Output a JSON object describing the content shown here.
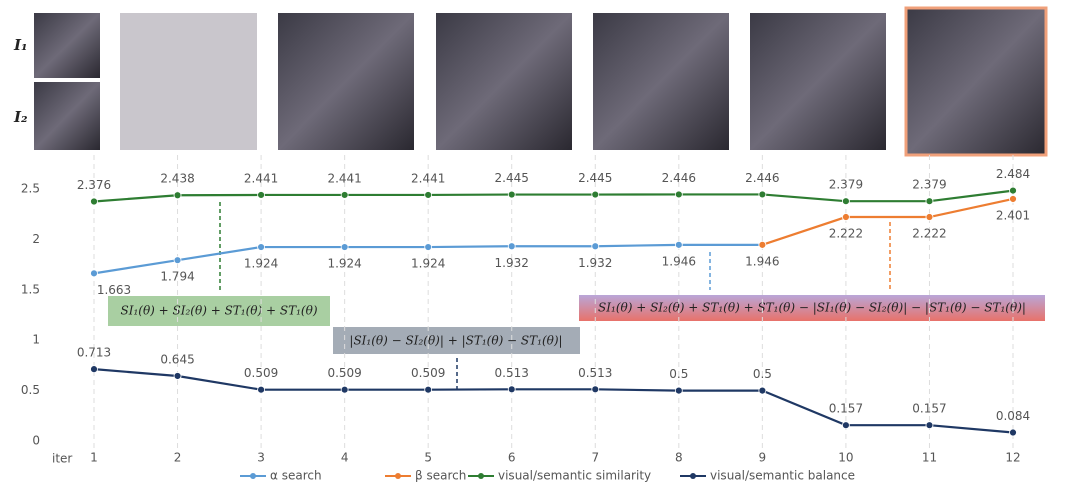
{
  "image_labels": [
    "I₁",
    "I₂"
  ],
  "chart_data": {
    "type": "line",
    "x_label": "iter",
    "x": [
      1,
      2,
      3,
      4,
      5,
      6,
      7,
      8,
      9,
      10,
      11,
      12
    ],
    "xlim": [
      1,
      12
    ],
    "ylim": [
      0,
      2.5
    ],
    "yticks": [
      0,
      0.5,
      1,
      1.5,
      2,
      2.5
    ],
    "legend": "bottom",
    "series": [
      {
        "name": "α search",
        "color": "#5b9bd5",
        "label_side": "below",
        "values": [
          1.663,
          1.794,
          1.924,
          1.924,
          1.924,
          1.932,
          1.932,
          1.946,
          1.946,
          null,
          null,
          null
        ]
      },
      {
        "name": "β search",
        "color": "#ed7d31",
        "label_side": "below",
        "values": [
          null,
          null,
          null,
          null,
          null,
          null,
          null,
          null,
          1.946,
          2.222,
          2.222,
          2.401
        ]
      },
      {
        "name": "visual/semantic similarity",
        "color": "#2e7d32",
        "label_side": "above",
        "values": [
          2.376,
          2.438,
          2.441,
          2.441,
          2.441,
          2.445,
          2.445,
          2.446,
          2.446,
          2.379,
          2.379,
          2.484
        ]
      },
      {
        "name": "visual/semantic balance",
        "color": "#1f3864",
        "label_side": "above",
        "values": [
          0.713,
          0.645,
          0.509,
          0.509,
          0.509,
          0.513,
          0.513,
          0.5,
          0.5,
          0.157,
          0.157,
          0.084
        ]
      }
    ],
    "annotations": [
      "SI₁(θ) + SI₂(θ) + ST₁(θ) + ST₁(θ)",
      "|SI₁(θ) − SI₂(θ)| + |ST₁(θ) − ST₁(θ)|",
      "SI₁(θ) + SI₂(θ) + ST₁(θ) + ST₁(θ) − |SI₁(θ) − SI₂(θ)| − |ST₁(θ) − ST₁(θ)|"
    ]
  }
}
